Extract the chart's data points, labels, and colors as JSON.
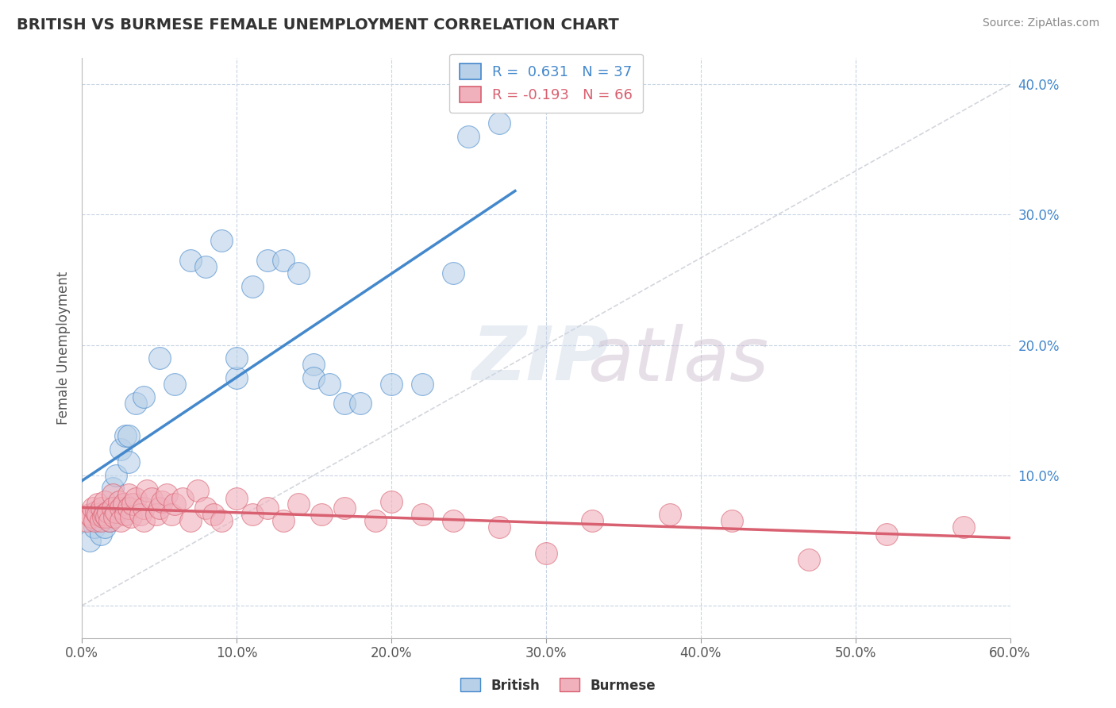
{
  "title": "BRITISH VS BURMESE FEMALE UNEMPLOYMENT CORRELATION CHART",
  "source": "Source: ZipAtlas.com",
  "ylabel": "Female Unemployment",
  "xlim": [
    0.0,
    0.6
  ],
  "ylim": [
    -0.025,
    0.42
  ],
  "xticks": [
    0.0,
    0.1,
    0.2,
    0.3,
    0.4,
    0.5,
    0.6
  ],
  "yticks": [
    0.0,
    0.1,
    0.2,
    0.3,
    0.4
  ],
  "british_R": 0.631,
  "british_N": 37,
  "burmese_R": -0.193,
  "burmese_N": 66,
  "british_color": "#b8d0e8",
  "burmese_color": "#f0b0bc",
  "british_line_color": "#4488cc",
  "burmese_line_color": "#d86070",
  "ref_line_color": "#c8ccd4",
  "grid_color": "#c8d4e4",
  "background_color": "#ffffff",
  "british_x": [
    0.005,
    0.008,
    0.01,
    0.012,
    0.015,
    0.015,
    0.018,
    0.02,
    0.02,
    0.022,
    0.025,
    0.028,
    0.03,
    0.03,
    0.035,
    0.04,
    0.05,
    0.06,
    0.07,
    0.08,
    0.09,
    0.1,
    0.1,
    0.11,
    0.12,
    0.13,
    0.14,
    0.15,
    0.15,
    0.16,
    0.17,
    0.18,
    0.2,
    0.22,
    0.24,
    0.25,
    0.27
  ],
  "british_y": [
    0.05,
    0.06,
    0.065,
    0.055,
    0.07,
    0.06,
    0.065,
    0.09,
    0.075,
    0.1,
    0.12,
    0.13,
    0.13,
    0.11,
    0.155,
    0.16,
    0.19,
    0.17,
    0.265,
    0.26,
    0.28,
    0.175,
    0.19,
    0.245,
    0.265,
    0.265,
    0.255,
    0.185,
    0.175,
    0.17,
    0.155,
    0.155,
    0.17,
    0.17,
    0.255,
    0.36,
    0.37
  ],
  "burmese_x": [
    0.003,
    0.005,
    0.006,
    0.007,
    0.008,
    0.009,
    0.01,
    0.01,
    0.012,
    0.013,
    0.014,
    0.015,
    0.015,
    0.016,
    0.017,
    0.018,
    0.02,
    0.02,
    0.021,
    0.022,
    0.024,
    0.025,
    0.025,
    0.027,
    0.028,
    0.03,
    0.03,
    0.032,
    0.033,
    0.035,
    0.038,
    0.04,
    0.04,
    0.042,
    0.045,
    0.048,
    0.05,
    0.052,
    0.055,
    0.058,
    0.06,
    0.065,
    0.07,
    0.075,
    0.08,
    0.085,
    0.09,
    0.1,
    0.11,
    0.12,
    0.13,
    0.14,
    0.155,
    0.17,
    0.19,
    0.2,
    0.22,
    0.24,
    0.27,
    0.3,
    0.33,
    0.38,
    0.42,
    0.47,
    0.52,
    0.57
  ],
  "burmese_y": [
    0.065,
    0.07,
    0.068,
    0.075,
    0.065,
    0.072,
    0.078,
    0.07,
    0.065,
    0.075,
    0.068,
    0.08,
    0.07,
    0.068,
    0.072,
    0.065,
    0.085,
    0.075,
    0.068,
    0.072,
    0.08,
    0.075,
    0.065,
    0.078,
    0.07,
    0.085,
    0.075,
    0.068,
    0.078,
    0.082,
    0.07,
    0.075,
    0.065,
    0.088,
    0.082,
    0.07,
    0.075,
    0.08,
    0.085,
    0.07,
    0.078,
    0.082,
    0.065,
    0.088,
    0.075,
    0.07,
    0.065,
    0.082,
    0.07,
    0.075,
    0.065,
    0.078,
    0.07,
    0.075,
    0.065,
    0.08,
    0.07,
    0.065,
    0.06,
    0.04,
    0.065,
    0.07,
    0.065,
    0.035,
    0.055,
    0.06
  ]
}
